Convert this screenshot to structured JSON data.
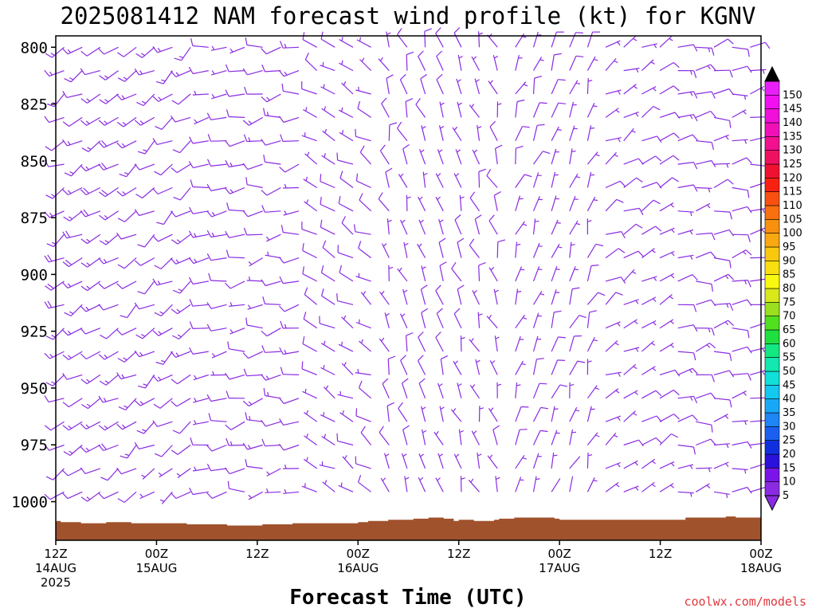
{
  "chart_data": {
    "type": "wind-barb profile",
    "title": "2025081412 NAM forecast wind profile (kt) for KGNV",
    "xlabel": "Forecast Time (UTC)",
    "ylabel": "",
    "credit": "coolwx.com/models",
    "y_axis": {
      "scale": "pressure (hPa), increasing downward",
      "range": [
        795,
        1017
      ],
      "ticks": [
        800,
        825,
        850,
        875,
        900,
        925,
        950,
        975,
        1000
      ]
    },
    "x_axis": {
      "range_hours": [
        0,
        84
      ],
      "ticks": [
        {
          "hour": 0,
          "lines": [
            "12Z",
            "14AUG",
            "2025"
          ]
        },
        {
          "hour": 12,
          "lines": [
            "00Z",
            "15AUG"
          ]
        },
        {
          "hour": 24,
          "lines": [
            "12Z"
          ]
        },
        {
          "hour": 36,
          "lines": [
            "00Z",
            "16AUG"
          ]
        },
        {
          "hour": 48,
          "lines": [
            "12Z"
          ]
        },
        {
          "hour": 60,
          "lines": [
            "00Z",
            "17AUG"
          ]
        },
        {
          "hour": 72,
          "lines": [
            "12Z"
          ]
        },
        {
          "hour": 84,
          "lines": [
            "00Z",
            "18AUG"
          ]
        }
      ]
    },
    "colorbar": {
      "units": "kt",
      "labels": [
        5,
        10,
        15,
        20,
        25,
        30,
        35,
        40,
        45,
        50,
        55,
        60,
        65,
        70,
        75,
        80,
        85,
        90,
        95,
        100,
        105,
        110,
        115,
        120,
        125,
        130,
        135,
        140,
        145,
        150
      ],
      "colors": [
        "#8a2be2",
        "#7b14e8",
        "#2a11dc",
        "#1030e0",
        "#1a5ff0",
        "#1e86f5",
        "#18a8f8",
        "#14c8f0",
        "#10e0d8",
        "#12e8b0",
        "#14e880",
        "#20e040",
        "#50e020",
        "#9ae020",
        "#d8e81a",
        "#f8f810",
        "#f8e010",
        "#f8c810",
        "#f8a810",
        "#f89010",
        "#f87010",
        "#f85010",
        "#f82010",
        "#f01030",
        "#f01060",
        "#f01090",
        "#f010b8",
        "#f010d8",
        "#f010f0",
        "#e820f8"
      ],
      "barb_color": "#8a2be2",
      "barb_color_strong": "#2020e0"
    },
    "terrain": {
      "color": "#a0522d",
      "surface_pressure": [
        1008.5,
        1009,
        1009,
        1009,
        1009,
        1009.5,
        1009.5,
        1009.5,
        1009.5,
        1009.5,
        1009,
        1009,
        1009,
        1009,
        1009,
        1009.5,
        1009.5,
        1009.5,
        1009.5,
        1009.5,
        1009.5,
        1009.5,
        1009.5,
        1009.5,
        1009.5,
        1009.5,
        1010,
        1010,
        1010,
        1010,
        1010,
        1010,
        1010,
        1010,
        1010.5,
        1010.5,
        1010.5,
        1010.5,
        1010.5,
        1010.5,
        1010.5,
        1010,
        1010,
        1010,
        1010,
        1010,
        1010,
        1009.5,
        1009.5,
        1009.5,
        1009.5,
        1009.5,
        1009.5,
        1009.5,
        1009.5,
        1009.5,
        1009.5,
        1009.5,
        1009.5,
        1009.5,
        1009,
        1009,
        1008.5,
        1008.5,
        1008.5,
        1008.5,
        1008,
        1008,
        1008,
        1008,
        1008,
        1007.5,
        1007.5,
        1007.5,
        1007,
        1007,
        1007,
        1007.5,
        1007.5,
        1008.5,
        1008,
        1008,
        1008,
        1008.5,
        1008.5,
        1008.5,
        1008.5,
        1008,
        1007.5,
        1007.5,
        1007.5,
        1007,
        1007,
        1007,
        1007,
        1007,
        1007,
        1007,
        1007,
        1007.5,
        1008,
        1008,
        1008,
        1008,
        1008,
        1008,
        1008,
        1008,
        1008,
        1008,
        1008,
        1008,
        1008,
        1008,
        1008,
        1008,
        1008,
        1008,
        1008,
        1008,
        1008,
        1008,
        1008,
        1008,
        1008,
        1007,
        1007,
        1007,
        1007,
        1007,
        1007,
        1007,
        1007,
        1006.5,
        1006.5,
        1007,
        1007,
        1007,
        1007,
        1007
      ]
    },
    "wind_regimes": [
      {
        "hours": [
          0,
          9
        ],
        "direction_deg": 240,
        "speed_kt": 15
      },
      {
        "hours": [
          9,
          18
        ],
        "direction_deg": 235,
        "speed_kt": 12
      },
      {
        "hours": [
          18,
          30
        ],
        "direction_deg": 260,
        "speed_kt": 10
      },
      {
        "hours": [
          30,
          38
        ],
        "direction_deg": 300,
        "speed_kt": 8
      },
      {
        "hours": [
          38,
          54
        ],
        "direction_deg": 340,
        "speed_kt": 7
      },
      {
        "hours": [
          54,
          64
        ],
        "direction_deg": 20,
        "speed_kt": 6
      },
      {
        "hours": [
          64,
          72
        ],
        "direction_deg": 60,
        "speed_kt": 7
      },
      {
        "hours": [
          72,
          84
        ],
        "direction_deg": 80,
        "speed_kt": 10
      }
    ]
  }
}
